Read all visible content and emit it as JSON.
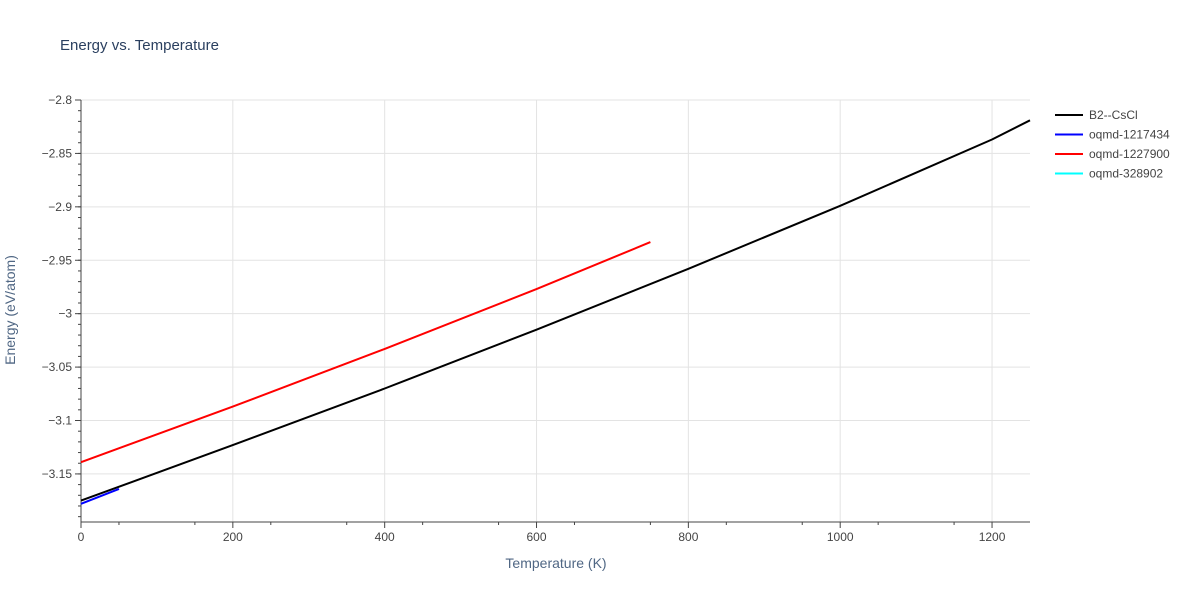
{
  "chart_data": {
    "type": "line",
    "title": "Energy vs. Temperature",
    "xlabel": "Temperature (K)",
    "ylabel": "Energy (eV/atom)",
    "xlim": [
      0,
      1250
    ],
    "ylim": [
      -3.195,
      -2.8
    ],
    "x_ticks": [
      0,
      200,
      400,
      600,
      800,
      1000,
      1200
    ],
    "x_tick_labels": [
      "0",
      "200",
      "400",
      "600",
      "800",
      "1000",
      "1200"
    ],
    "y_ticks": [
      -3.15,
      -3.1,
      -3.05,
      -3.0,
      -2.95,
      -2.9,
      -2.85,
      -2.8
    ],
    "y_tick_labels": [
      "−3.15",
      "−3.1",
      "−3.05",
      "−3",
      "−2.95",
      "−2.9",
      "−2.85",
      "−2.8"
    ],
    "grid": true,
    "legend_position": "top-right",
    "series": [
      {
        "name": "B2--CsCl",
        "color": "#000000",
        "x": [
          0,
          200,
          400,
          600,
          800,
          1000,
          1200,
          1250
        ],
        "y": [
          -3.175,
          -3.123,
          -3.07,
          -3.015,
          -2.958,
          -2.899,
          -2.837,
          -2.819
        ]
      },
      {
        "name": "oqmd-1217434",
        "color": "#0000ff",
        "x": [
          0,
          50
        ],
        "y": [
          -3.178,
          -3.164
        ]
      },
      {
        "name": "oqmd-1227900",
        "color": "#ff0000",
        "x": [
          0,
          200,
          400,
          600,
          750
        ],
        "y": [
          -3.139,
          -3.087,
          -3.033,
          -2.977,
          -2.933
        ]
      },
      {
        "name": "oqmd-328902",
        "color": "#00ffff",
        "x": [],
        "y": []
      }
    ]
  }
}
